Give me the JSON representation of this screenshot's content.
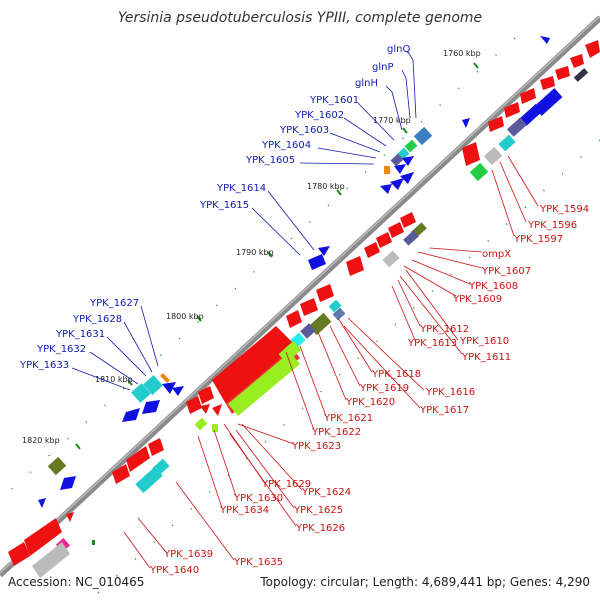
{
  "title": "Yersinia pseudotuberculosis YPIII, complete genome",
  "footer": {
    "accession": "Accession: NC_010465",
    "summary": "Topology: circular; Length: 4,689,441 bp; Genes: 4,290"
  },
  "colors": {
    "backbone": "#888888",
    "forward_gene": "#1010e0",
    "reverse_gene": "#ee1111",
    "blue_label": "#0d1bb0",
    "red_label": "#cc1111",
    "tick": "#1a8a1a",
    "lime_feature": "#99ee22",
    "cyan_feature": "#22cccc",
    "olive_feature": "#667a22",
    "slate_feature": "#5a5a9a",
    "magenta_feature": "#ee2299",
    "orange_feature": "#ee8811"
  },
  "scale_labels": [
    "1760 kbp",
    "1770 kbp",
    "1780 kbp",
    "1790 kbp",
    "1800 kbp",
    "1810 kbp",
    "1820 kbp"
  ],
  "outer_labels": [
    "glnQ",
    "glnP",
    "glnH",
    "YPK_1601",
    "YPK_1602",
    "YPK_1603",
    "YPK_1604",
    "YPK_1605",
    "YPK_1614",
    "YPK_1615",
    "YPK_1627",
    "YPK_1628",
    "YPK_1631",
    "YPK_1632",
    "YPK_1633"
  ],
  "inner_labels": [
    "YPK_1594",
    "YPK_1596",
    "YPK_1597",
    "ompX",
    "YPK_1607",
    "YPK_1608",
    "YPK_1609",
    "YPK_1612",
    "YPK_1613",
    "YPK_1610",
    "YPK_1611",
    "YPK_1618",
    "YPK_1619",
    "YPK_1620",
    "YPK_1616",
    "YPK_1617",
    "YPK_1621",
    "YPK_1622",
    "YPK_1623",
    "YPK_1629",
    "YPK_1624",
    "YPK_1630",
    "YPK_1634",
    "YPK_1625",
    "YPK_1626",
    "YPK_1639",
    "YPK_1635",
    "YPK_1640"
  ]
}
